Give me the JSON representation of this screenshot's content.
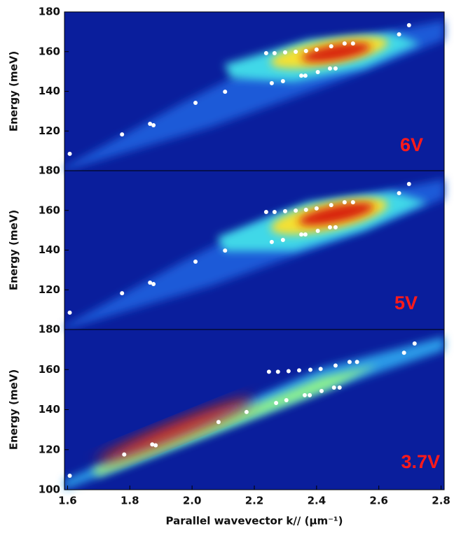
{
  "chart_data": [
    {
      "type": "scatter",
      "annotation": "6V",
      "y_label": "Energy (meV)",
      "color": "#ffffff",
      "xlim": [
        1.59,
        2.81
      ],
      "ylim": [
        100,
        180
      ],
      "yticks": [
        120,
        140,
        160,
        180
      ],
      "x": [
        1.607,
        1.775,
        1.865,
        1.876,
        2.011,
        2.106,
        2.238,
        2.265,
        2.299,
        2.333,
        2.366,
        2.4,
        2.447,
        2.49,
        2.517,
        2.256,
        2.292,
        2.351,
        2.364,
        2.404,
        2.443,
        2.461,
        2.665,
        2.697
      ],
      "y": [
        108.5,
        118.3,
        123.6,
        122.9,
        134.2,
        139.8,
        159.2,
        159.2,
        159.6,
        159.9,
        160.3,
        161,
        162.7,
        164.1,
        164.1,
        144.1,
        145.1,
        147.9,
        147.9,
        149.7,
        151.5,
        151.5,
        168.7,
        173.3
      ]
    },
    {
      "type": "scatter",
      "annotation": "5V",
      "y_label": "Energy (meV)",
      "color": "#ffffff",
      "xlim": [
        1.59,
        2.81
      ],
      "ylim": [
        100,
        180
      ],
      "yticks": [
        120,
        140,
        160,
        180
      ],
      "x": [
        1.607,
        1.775,
        1.865,
        1.876,
        2.011,
        2.106,
        2.238,
        2.265,
        2.299,
        2.333,
        2.366,
        2.4,
        2.447,
        2.49,
        2.517,
        2.256,
        2.292,
        2.351,
        2.364,
        2.404,
        2.443,
        2.461,
        2.665,
        2.697
      ],
      "y": [
        108.5,
        118.3,
        123.6,
        122.9,
        134.2,
        139.8,
        159.2,
        159.2,
        159.6,
        159.9,
        160.3,
        161,
        162.7,
        164.1,
        164.1,
        144.1,
        145.1,
        147.9,
        147.9,
        149.7,
        151.5,
        151.5,
        168.7,
        173.3
      ]
    },
    {
      "type": "scatter",
      "annotation": "3.7V",
      "y_label": "Energy (meV)",
      "color": "#ffffff",
      "x_label": "Parallel wavevector k// (μm⁻¹)",
      "xlim": [
        1.59,
        2.81
      ],
      "ylim": [
        100,
        180
      ],
      "yticks": [
        100,
        120,
        140,
        160,
        180
      ],
      "xticks": [
        1.6,
        1.8,
        {
          "value": 2,
          "label": "2.0"
        },
        2.2,
        2.4,
        2.6,
        2.8
      ],
      "x": [
        1.607,
        1.782,
        1.872,
        1.883,
        2.085,
        2.175,
        2.247,
        2.276,
        2.31,
        2.344,
        2.38,
        2.413,
        2.461,
        2.506,
        2.53,
        2.27,
        2.303,
        2.362,
        2.378,
        2.416,
        2.456,
        2.474,
        2.681,
        2.715
      ],
      "y": [
        107,
        117.6,
        122.6,
        122.2,
        133.8,
        138.8,
        158.9,
        158.9,
        159.2,
        159.6,
        159.9,
        160.3,
        162,
        163.8,
        163.8,
        143.3,
        144.7,
        147.2,
        147.2,
        149.3,
        151,
        151,
        168.4,
        173
      ]
    }
  ]
}
